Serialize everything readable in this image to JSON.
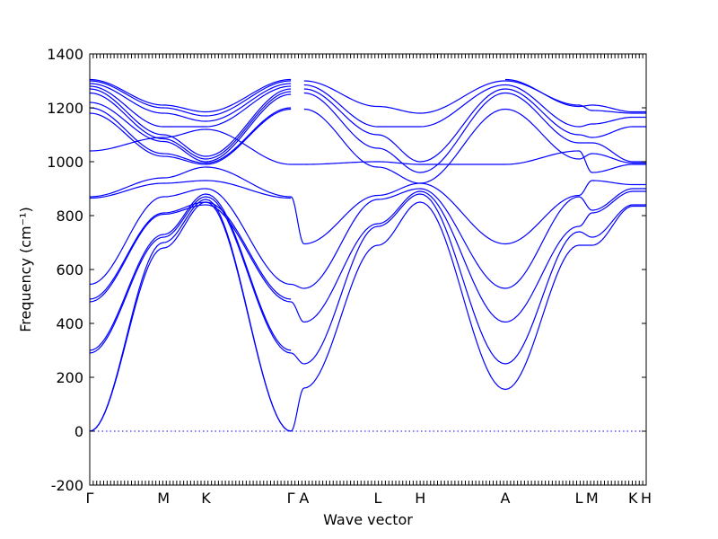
{
  "chart_data": {
    "type": "line",
    "title": "",
    "xlabel": "Wave vector",
    "ylabel": "Frequency (cm⁻¹)",
    "ylim": [
      -200,
      1400
    ],
    "yticks": [
      -200,
      0,
      200,
      400,
      600,
      800,
      1000,
      1200,
      1400
    ],
    "grid": false,
    "line_color": "#0000ff",
    "zero_line": {
      "y": 0,
      "style": "dotted"
    },
    "high_symmetry_points": [
      {
        "label": "Γ",
        "pos": 0.0
      },
      {
        "label": "M",
        "pos": 0.1325
      },
      {
        "label": "K",
        "pos": 0.2088
      },
      {
        "label": "Γ",
        "pos": 0.3615
      },
      {
        "label": "A",
        "pos": 0.3852
      },
      {
        "label": "L",
        "pos": 0.5177
      },
      {
        "label": "H",
        "pos": 0.594
      },
      {
        "label": "A",
        "pos": 0.7467
      },
      {
        "label": "L",
        "pos": 0.8792
      },
      {
        "label": "M",
        "pos": 0.9029
      },
      {
        "label": "K",
        "pos": 0.9763
      },
      {
        "label": "H",
        "pos": 1.0
      }
    ],
    "series": [
      {
        "x": [
          0,
          0.1325,
          0.2088,
          0.3615
        ],
        "y": [
          0,
          680,
          850,
          0
        ]
      },
      {
        "x": [
          0,
          0.1325,
          0.2088,
          0.3615
        ],
        "y": [
          0,
          700,
          860,
          0
        ]
      },
      {
        "x": [
          0,
          0.1325,
          0.2088,
          0.3615
        ],
        "y": [
          290,
          720,
          870,
          290
        ]
      },
      {
        "x": [
          0,
          0.1325,
          0.2088,
          0.3615
        ],
        "y": [
          300,
          730,
          880,
          300
        ]
      },
      {
        "x": [
          0,
          0.1325,
          0.2088,
          0.3615
        ],
        "y": [
          480,
          805,
          840,
          480
        ]
      },
      {
        "x": [
          0,
          0.1325,
          0.2088,
          0.3615
        ],
        "y": [
          490,
          810,
          850,
          490
        ]
      },
      {
        "x": [
          0,
          0.1325,
          0.2088,
          0.3615
        ],
        "y": [
          545,
          870,
          900,
          545
        ]
      },
      {
        "x": [
          0,
          0.1325,
          0.2088,
          0.3615
        ],
        "y": [
          865,
          920,
          930,
          865
        ]
      },
      {
        "x": [
          0,
          0.1325,
          0.2088,
          0.3615
        ],
        "y": [
          870,
          940,
          980,
          870
        ]
      },
      {
        "x": [
          0,
          0.1325,
          0.2088,
          0.3615
        ],
        "y": [
          1040,
          1090,
          1120,
          990
        ]
      },
      {
        "x": [
          0,
          0.1325,
          0.2088,
          0.3615
        ],
        "y": [
          1180,
          1020,
          990,
          1195
        ]
      },
      {
        "x": [
          0,
          0.1325,
          0.2088,
          0.3615
        ],
        "y": [
          1200,
          1030,
          995,
          1200
        ]
      },
      {
        "x": [
          0,
          0.1325,
          0.2088,
          0.3615
        ],
        "y": [
          1220,
          1075,
          1000,
          1250
        ]
      },
      {
        "x": [
          0,
          0.1325,
          0.2088,
          0.3615
        ],
        "y": [
          1255,
          1085,
          1010,
          1260
        ]
      },
      {
        "x": [
          0,
          0.1325,
          0.2088,
          0.3615
        ],
        "y": [
          1270,
          1100,
          1020,
          1270
        ]
      },
      {
        "x": [
          0,
          0.1325,
          0.2088,
          0.3615
        ],
        "y": [
          1280,
          1130,
          1130,
          1280
        ]
      },
      {
        "x": [
          0,
          0.1325,
          0.2088,
          0.3615
        ],
        "y": [
          1290,
          1180,
          1150,
          1290
        ]
      },
      {
        "x": [
          0,
          0.1325,
          0.2088,
          0.3615
        ],
        "y": [
          1300,
          1200,
          1170,
          1300
        ]
      },
      {
        "x": [
          0,
          0.1325,
          0.2088,
          0.3615
        ],
        "y": [
          1305,
          1210,
          1185,
          1305
        ]
      },
      {
        "x": [
          0.3615,
          0.3852
        ],
        "y": [
          0,
          160
        ]
      },
      {
        "x": [
          0.3615,
          0.3852
        ],
        "y": [
          290,
          250
        ]
      },
      {
        "x": [
          0.3615,
          0.3852
        ],
        "y": [
          480,
          405
        ]
      },
      {
        "x": [
          0.3615,
          0.3852
        ],
        "y": [
          545,
          530
        ]
      },
      {
        "x": [
          0.3615,
          0.3852
        ],
        "y": [
          870,
          695
        ]
      },
      {
        "x": [
          0.3615,
          0.3852
        ],
        "y": [
          990,
          990
        ]
      },
      {
        "x": [
          0.3852,
          0.5177,
          0.594,
          0.7467
        ],
        "y": [
          160,
          690,
          850,
          155
        ]
      },
      {
        "x": [
          0.3852,
          0.5177,
          0.594,
          0.7467
        ],
        "y": [
          250,
          760,
          880,
          250
        ]
      },
      {
        "x": [
          0.3852,
          0.5177,
          0.594,
          0.7467
        ],
        "y": [
          405,
          770,
          890,
          405
        ]
      },
      {
        "x": [
          0.3852,
          0.5177,
          0.594,
          0.7467
        ],
        "y": [
          530,
          860,
          900,
          530
        ]
      },
      {
        "x": [
          0.3852,
          0.5177,
          0.594,
          0.7467
        ],
        "y": [
          695,
          875,
          920,
          695
        ]
      },
      {
        "x": [
          0.3852,
          0.5177,
          0.594,
          0.7467
        ],
        "y": [
          990,
          1000,
          990,
          990
        ]
      },
      {
        "x": [
          0.3852,
          0.5177,
          0.594,
          0.7467
        ],
        "y": [
          1195,
          980,
          920,
          1195
        ]
      },
      {
        "x": [
          0.3852,
          0.5177,
          0.594,
          0.7467
        ],
        "y": [
          1255,
          1050,
          960,
          1255
        ]
      },
      {
        "x": [
          0.3852,
          0.5177,
          0.594,
          0.7467
        ],
        "y": [
          1270,
          1100,
          1000,
          1270
        ]
      },
      {
        "x": [
          0.3852,
          0.5177,
          0.594,
          0.7467
        ],
        "y": [
          1285,
          1130,
          1130,
          1285
        ]
      },
      {
        "x": [
          0.3852,
          0.5177,
          0.594,
          0.7467
        ],
        "y": [
          1300,
          1205,
          1180,
          1300
        ]
      },
      {
        "x": [
          0.7467,
          0.8792,
          0.9029,
          0.9763,
          1.0
        ],
        "y": [
          155,
          690,
          690,
          835,
          835
        ]
      },
      {
        "x": [
          0.7467,
          0.8792,
          0.9029,
          0.9763,
          1.0
        ],
        "y": [
          250,
          740,
          720,
          840,
          840
        ]
      },
      {
        "x": [
          0.7467,
          0.8792,
          0.9029,
          0.9763,
          1.0
        ],
        "y": [
          405,
          760,
          810,
          890,
          890
        ]
      },
      {
        "x": [
          0.7467,
          0.8792,
          0.9029,
          0.9763,
          1.0
        ],
        "y": [
          530,
          870,
          820,
          900,
          900
        ]
      },
      {
        "x": [
          0.7467,
          0.8792,
          0.9029,
          0.9763,
          1.0
        ],
        "y": [
          695,
          875,
          930,
          915,
          915
        ]
      },
      {
        "x": [
          0.7467,
          0.8792,
          0.9029,
          0.9763,
          1.0
        ],
        "y": [
          990,
          1040,
          960,
          990,
          990
        ]
      },
      {
        "x": [
          0.7467,
          0.8792,
          0.9029,
          0.9763,
          1.0
        ],
        "y": [
          1195,
          1010,
          1030,
          995,
          995
        ]
      },
      {
        "x": [
          0.7467,
          0.8792,
          0.9029,
          0.9763,
          1.0
        ],
        "y": [
          1255,
          1070,
          1070,
          1000,
          1000
        ]
      },
      {
        "x": [
          0.7467,
          0.8792,
          0.9029,
          0.9763,
          1.0
        ],
        "y": [
          1270,
          1100,
          1090,
          1130,
          1130
        ]
      },
      {
        "x": [
          0.7467,
          0.8792,
          0.9029,
          0.9763,
          1.0
        ],
        "y": [
          1285,
          1130,
          1140,
          1165,
          1165
        ]
      },
      {
        "x": [
          0.7467,
          0.8792,
          0.9029,
          0.9763,
          1.0
        ],
        "y": [
          1300,
          1210,
          1190,
          1180,
          1180
        ]
      },
      {
        "x": [
          0.7467,
          0.8792,
          0.9029,
          0.9763,
          1.0
        ],
        "y": [
          1305,
          1205,
          1210,
          1185,
          1185
        ]
      }
    ]
  }
}
